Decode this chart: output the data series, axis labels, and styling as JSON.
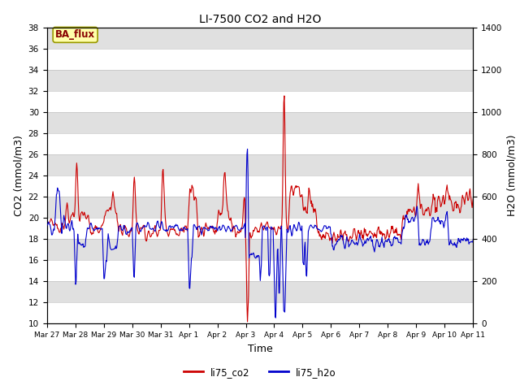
{
  "title": "LI-7500 CO2 and H2O",
  "xlabel": "Time",
  "ylabel_left": "CO2 (mmol/m3)",
  "ylabel_right": "H2O (mmol/m3)",
  "ylim_left": [
    10,
    38
  ],
  "ylim_right": [
    0,
    1400
  ],
  "yticks_left": [
    10,
    12,
    14,
    16,
    18,
    20,
    22,
    24,
    26,
    28,
    30,
    32,
    34,
    36,
    38
  ],
  "yticks_right": [
    0,
    200,
    400,
    600,
    800,
    1000,
    1200,
    1400
  ],
  "xtick_labels": [
    "Mar 27",
    "Mar 28",
    "Mar 29",
    "Mar 30",
    "Mar 31",
    "Apr 1",
    "Apr 2",
    "Apr 3",
    "Apr 4",
    "Apr 5",
    "Apr 6",
    "Apr 7",
    "Apr 8",
    "Apr 9",
    "Apr 10",
    "Apr 11"
  ],
  "co2_color": "#cc0000",
  "h2o_color": "#0000cc",
  "legend_co2": "li75_co2",
  "legend_h2o": "li75_h2o",
  "background_color": "#ffffff",
  "band_color": "#e0e0e0",
  "annotation_text": "BA_flux",
  "annotation_bg": "#ffffaa",
  "annotation_border": "#999900"
}
